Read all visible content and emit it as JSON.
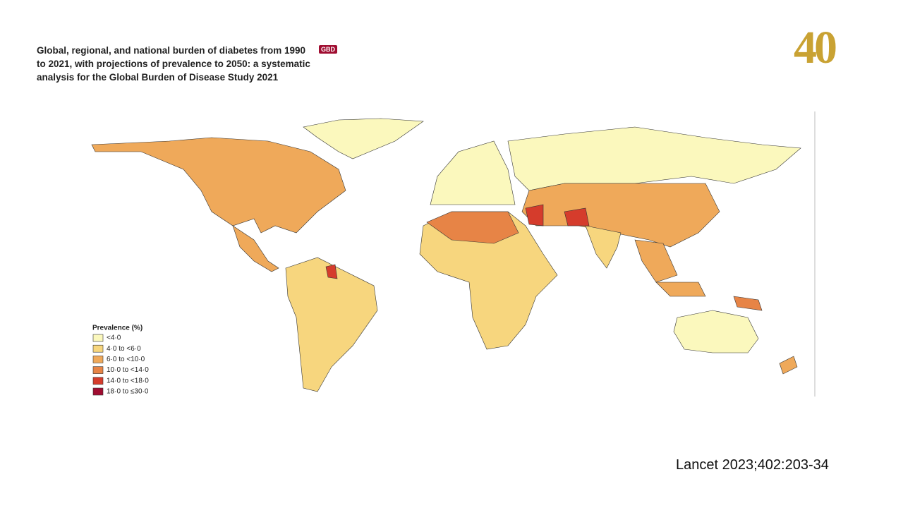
{
  "header": {
    "title": "Global, regional, and national burden of diabetes from 1990 to 2021, with projections of prevalence to 2050: a systematic analysis for the Global Burden of Disease Study 2021",
    "badge": "GBD"
  },
  "logo": {
    "text": "40"
  },
  "legend": {
    "title": "Prevalence (%)",
    "items": [
      {
        "label": "<4·0",
        "color": "#fbf8bd"
      },
      {
        "label": "4·0 to <6·0",
        "color": "#f7d67e"
      },
      {
        "label": "6·0 to <10·0",
        "color": "#efa95a"
      },
      {
        "label": "10·0 to <14·0",
        "color": "#e78446"
      },
      {
        "label": "14·0 to <18·0",
        "color": "#d53c2c"
      },
      {
        "label": "18·0 to ≤30·0",
        "color": "#a00d31"
      }
    ]
  },
  "citation": "Lancet 2023;402:203-34"
}
